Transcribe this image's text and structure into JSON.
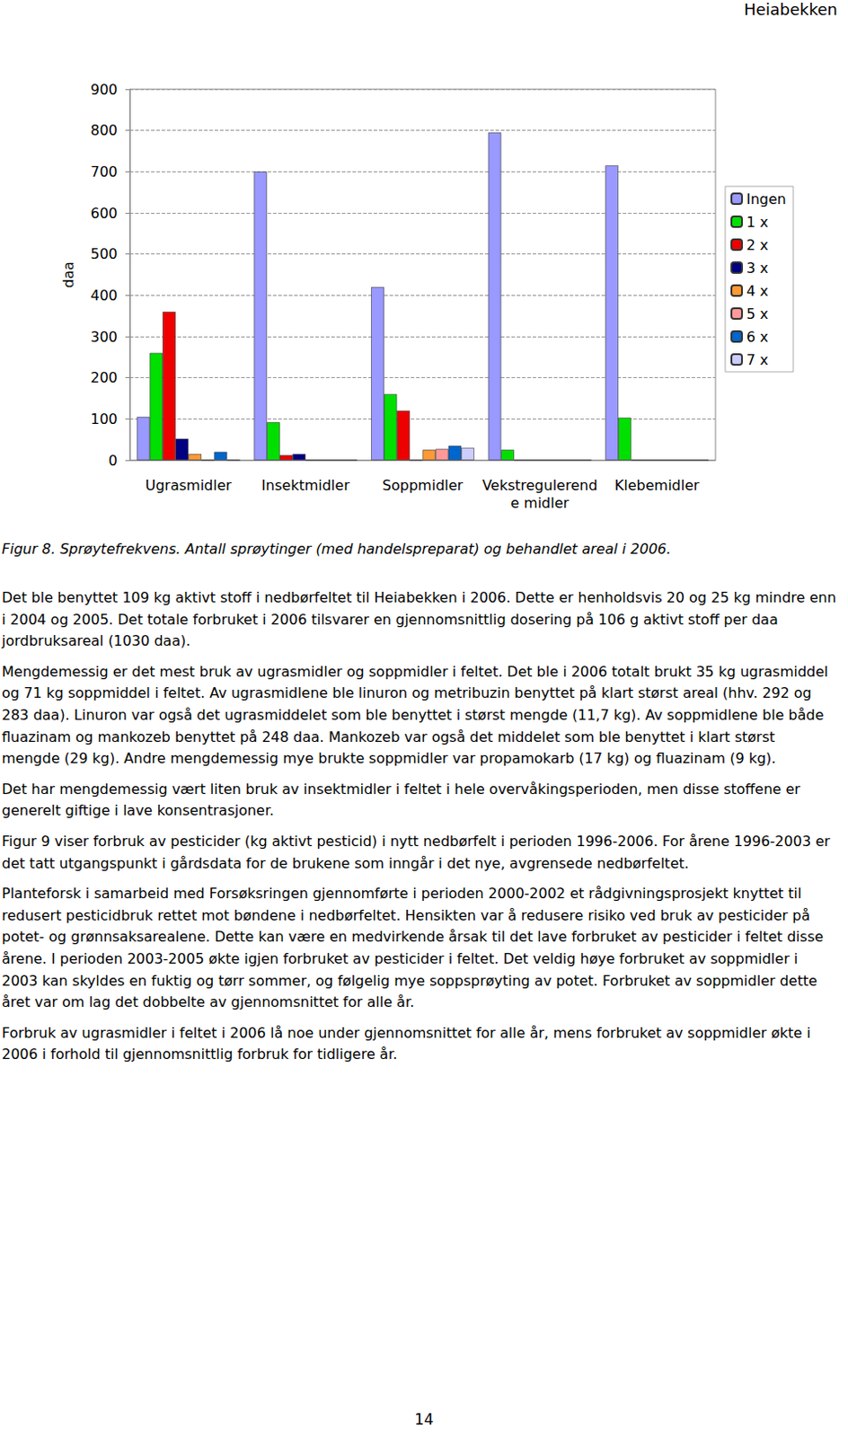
{
  "header": "Heiabekken",
  "chart_data": {
    "type": "bar",
    "y_label": "daa",
    "categories": [
      "Ugrasmidler",
      "Insektmidler",
      "Soppmidler",
      "Vekstregulerende midler",
      "Klebemidler"
    ],
    "series": [
      {
        "name": "Ingen",
        "color": "#9999ff",
        "values": [
          105,
          700,
          420,
          795,
          715
        ]
      },
      {
        "name": "1 x",
        "color": "#00e000",
        "values": [
          260,
          92,
          160,
          25,
          103
        ]
      },
      {
        "name": "2 x",
        "color": "#ee0000",
        "values": [
          360,
          12,
          120,
          0,
          0
        ]
      },
      {
        "name": "3 x",
        "color": "#000080",
        "values": [
          52,
          15,
          0,
          0,
          0
        ]
      },
      {
        "name": "4 x",
        "color": "#ff9933",
        "values": [
          15,
          0,
          25,
          0,
          0
        ]
      },
      {
        "name": "5 x",
        "color": "#ff9999",
        "values": [
          0,
          0,
          27,
          0,
          0
        ]
      },
      {
        "name": "6 x",
        "color": "#0066cc",
        "values": [
          20,
          0,
          35,
          0,
          0
        ]
      },
      {
        "name": "7 x",
        "color": "#ccccff",
        "values": [
          0,
          0,
          30,
          0,
          0
        ]
      }
    ],
    "ylim": [
      0,
      900
    ],
    "yticks": [
      0,
      100,
      200,
      300,
      400,
      500,
      600,
      700,
      800,
      900
    ],
    "grid": true,
    "legend": "right"
  },
  "caption": "Figur 8. Sprøytefrekvens. Antall sprøytinger (med handelspreparat) og behandlet areal i 2006.",
  "paragraphs": [
    "Det ble benyttet 109 kg aktivt stoff i nedbørfeltet til Heiabekken i 2006. Dette er henholdsvis 20 og 25 kg mindre enn i 2004 og 2005. Det totale forbruket i 2006 tilsvarer en gjennomsnittlig dosering på 106 g aktivt stoff per daa jordbruksareal (1030 daa).",
    "Mengdemessig er det mest bruk av ugrasmidler og soppmidler i feltet. Det ble i 2006 totalt brukt 35 kg ugrasmiddel og 71 kg soppmiddel i feltet. Av ugrasmidlene ble linuron og metribuzin benyttet på klart størst areal (hhv. 292 og 283 daa). Linuron var også det ugrasmiddelet som ble benyttet i størst mengde (11,7 kg). Av soppmidlene ble både fluazinam og mankozeb benyttet på 248 daa. Mankozeb var også det middelet som ble benyttet i klart størst mengde (29 kg). Andre mengdemessig mye brukte soppmidler var propamokarb (17 kg) og fluazinam (9 kg).",
    "Det har mengdemessig vært liten bruk av insektmidler i feltet i hele overvåkingsperioden, men disse stoffene er generelt giftige i lave konsentrasjoner.",
    "Figur 9 viser forbruk av pesticider (kg aktivt pesticid) i nytt nedbørfelt i perioden 1996-2006. For årene 1996-2003 er det tatt utgangspunkt i gårdsdata for de brukene som inngår i det nye, avgrensede nedbørfeltet.",
    "Planteforsk i samarbeid med Forsøksringen gjennomførte i perioden 2000-2002 et rådgivningsprosjekt knyttet til redusert pesticidbruk rettet mot bøndene i nedbørfeltet. Hensikten var å redusere risiko ved bruk av pesticider på potet- og grønnsaksarealene. Dette kan være en medvirkende årsak til det lave forbruket av pesticider i feltet disse årene. I perioden 2003-2005 økte igjen forbruket av pesticider i feltet. Det veldig høye forbruket av soppmidler i 2003 kan skyldes en fuktig og tørr sommer, og følgelig mye soppsprøyting av potet. Forbruket av soppmidler dette året var om lag det dobbelte av gjennomsnittet for alle år.",
    "Forbruk av ugrasmidler i feltet i 2006 lå noe under gjennomsnittet for alle år, mens forbruket av soppmidler økte i 2006 i forhold til gjennomsnittlig forbruk for tidligere år."
  ],
  "page_number": "14"
}
